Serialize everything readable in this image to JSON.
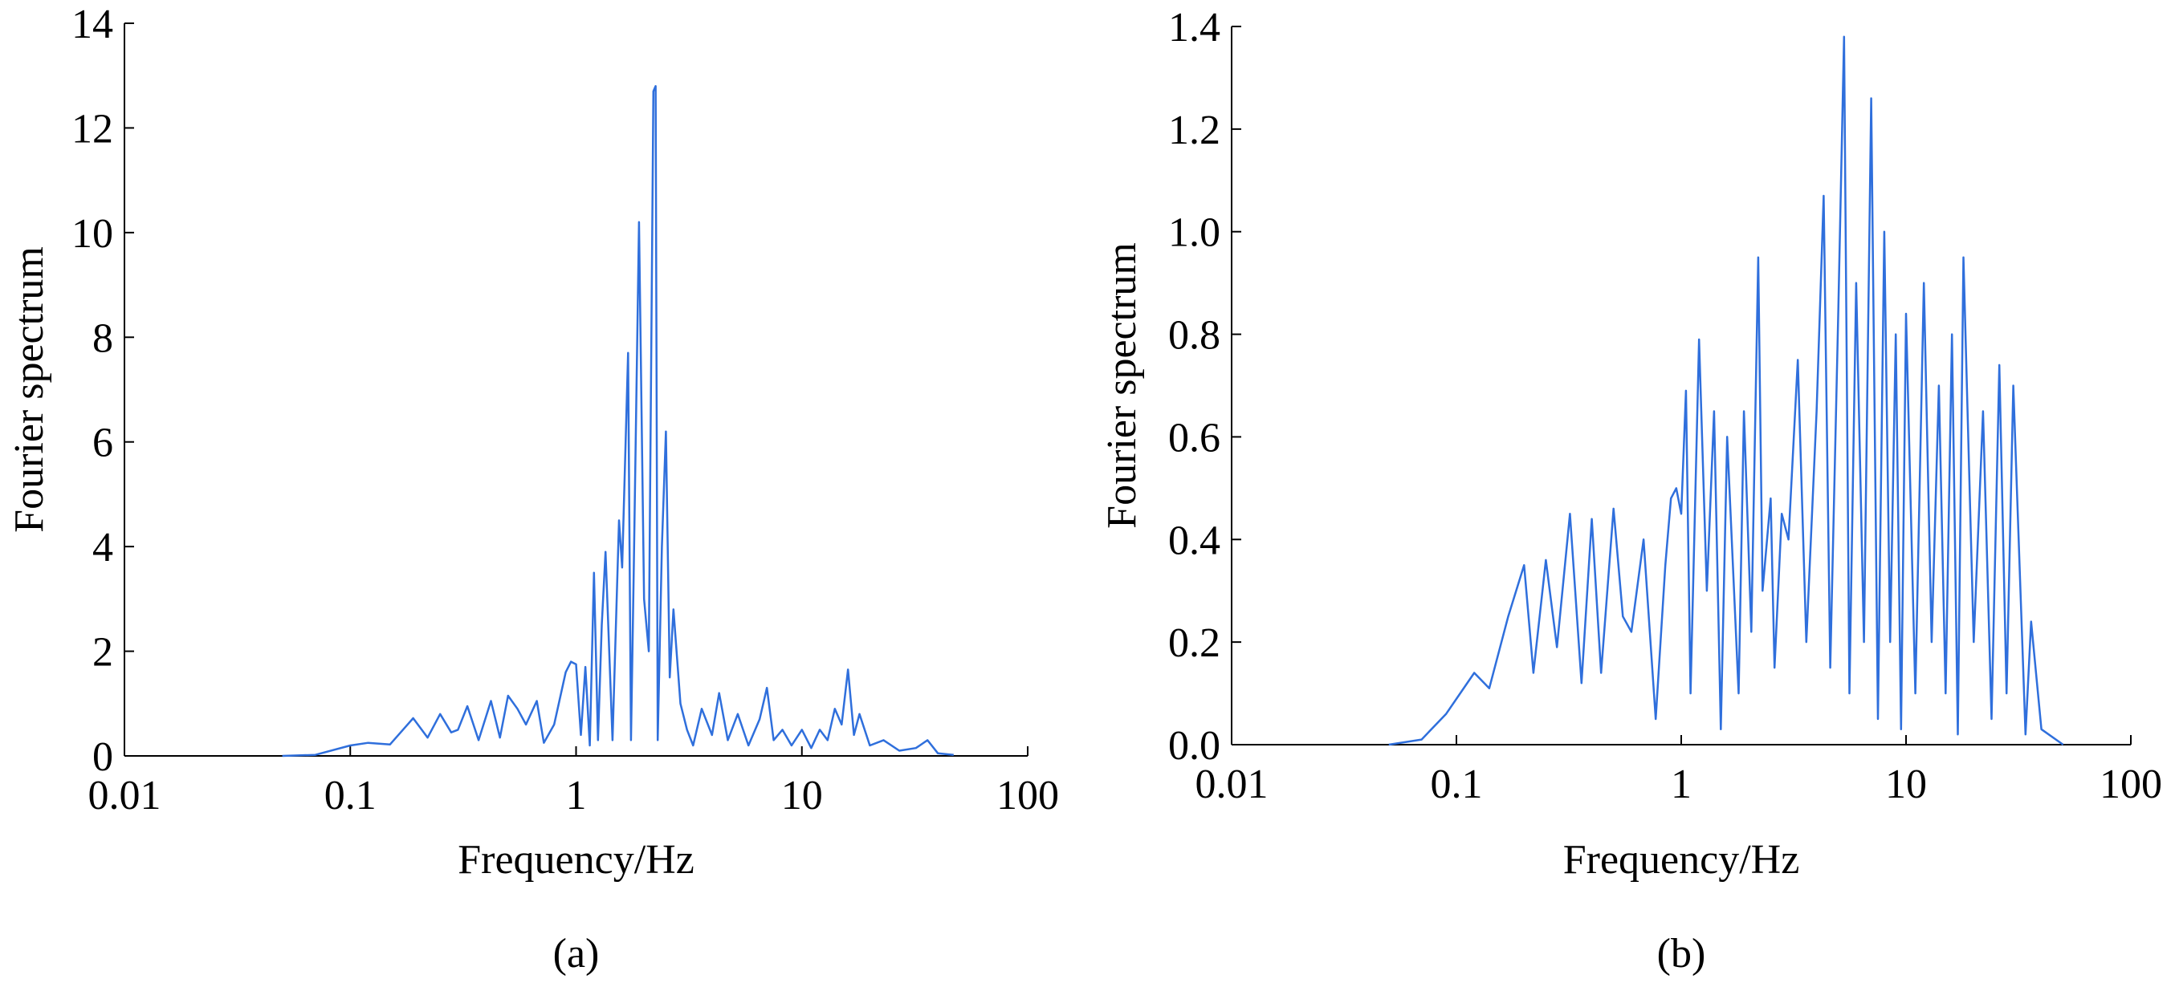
{
  "chart_data": [
    {
      "type": "line",
      "caption": "(a)",
      "xlabel": "Frequency/Hz",
      "ylabel": "Fourier spectrum",
      "xscale": "log",
      "xlim": [
        0.01,
        100
      ],
      "xticks": [
        0.01,
        0.1,
        1,
        10,
        100
      ],
      "ylim": [
        0,
        14
      ],
      "yticks": [
        0,
        2,
        4,
        6,
        8,
        10,
        12,
        14
      ],
      "x": [
        0.05,
        0.07,
        0.1,
        0.12,
        0.15,
        0.19,
        0.22,
        0.25,
        0.28,
        0.3,
        0.33,
        0.37,
        0.42,
        0.46,
        0.5,
        0.55,
        0.6,
        0.67,
        0.72,
        0.8,
        0.9,
        0.95,
        1.0,
        1.05,
        1.1,
        1.15,
        1.2,
        1.25,
        1.3,
        1.35,
        1.45,
        1.55,
        1.6,
        1.7,
        1.75,
        1.8,
        1.9,
        2.0,
        2.1,
        2.2,
        2.25,
        2.3,
        2.4,
        2.5,
        2.6,
        2.7,
        2.9,
        3.1,
        3.3,
        3.6,
        4.0,
        4.3,
        4.7,
        5.2,
        5.8,
        6.5,
        7.0,
        7.5,
        8.2,
        9,
        10,
        11,
        12,
        13,
        14,
        15,
        16,
        17,
        18,
        20,
        23,
        27,
        32,
        36,
        40,
        47
      ],
      "series": [
        {
          "color": "#2f6fdc",
          "values": [
            0,
            0.02,
            0.2,
            0.25,
            0.22,
            0.72,
            0.35,
            0.8,
            0.45,
            0.5,
            0.95,
            0.3,
            1.05,
            0.35,
            1.15,
            0.9,
            0.6,
            1.05,
            0.25,
            0.6,
            1.6,
            1.8,
            1.75,
            0.4,
            1.7,
            0.2,
            3.5,
            0.3,
            2.5,
            3.9,
            0.3,
            4.5,
            3.6,
            7.7,
            0.3,
            3.5,
            10.2,
            3.0,
            2.0,
            12.7,
            12.8,
            0.3,
            4.0,
            6.2,
            1.5,
            2.8,
            1.0,
            0.5,
            0.2,
            0.9,
            0.4,
            1.2,
            0.3,
            0.8,
            0.2,
            0.7,
            1.3,
            0.3,
            0.5,
            0.2,
            0.5,
            0.15,
            0.5,
            0.3,
            0.9,
            0.6,
            1.65,
            0.4,
            0.8,
            0.2,
            0.3,
            0.1,
            0.15,
            0.3,
            0.05,
            0.02
          ]
        }
      ]
    },
    {
      "type": "line",
      "caption": "(b)",
      "xlabel": "Frequency/Hz",
      "ylabel": "Fourier spectrum",
      "xscale": "log",
      "xlim": [
        0.01,
        100
      ],
      "xticks": [
        0.01,
        0.1,
        1,
        10,
        100
      ],
      "ylim": [
        0,
        1.4
      ],
      "yticks": [
        {
          "value": 0,
          "label": "0.0"
        },
        0.2,
        0.4,
        0.6,
        0.8,
        {
          "value": 1,
          "label": "1.0"
        },
        1.2,
        1.4
      ],
      "x": [
        0.05,
        0.07,
        0.09,
        0.12,
        0.14,
        0.17,
        0.2,
        0.22,
        0.25,
        0.28,
        0.32,
        0.36,
        0.4,
        0.44,
        0.5,
        0.55,
        0.6,
        0.68,
        0.77,
        0.85,
        0.9,
        0.95,
        1.0,
        1.05,
        1.1,
        1.2,
        1.3,
        1.4,
        1.5,
        1.6,
        1.8,
        1.9,
        2.05,
        2.2,
        2.3,
        2.5,
        2.6,
        2.8,
        3.0,
        3.3,
        3.6,
        4.0,
        4.3,
        4.6,
        5.0,
        5.3,
        5.6,
        6.0,
        6.5,
        7.0,
        7.5,
        8.0,
        8.5,
        9.0,
        9.5,
        10,
        11,
        12,
        13,
        14,
        15,
        16,
        17,
        18,
        20,
        22,
        24,
        26,
        28,
        30,
        32,
        34,
        36,
        40,
        50
      ],
      "series": [
        {
          "color": "#2f6fdc",
          "values": [
            0,
            0.01,
            0.06,
            0.14,
            0.11,
            0.25,
            0.35,
            0.14,
            0.36,
            0.19,
            0.45,
            0.12,
            0.44,
            0.14,
            0.46,
            0.25,
            0.22,
            0.4,
            0.05,
            0.35,
            0.48,
            0.5,
            0.45,
            0.69,
            0.1,
            0.79,
            0.3,
            0.65,
            0.03,
            0.6,
            0.1,
            0.65,
            0.22,
            0.95,
            0.3,
            0.48,
            0.15,
            0.45,
            0.4,
            0.75,
            0.2,
            0.65,
            1.07,
            0.15,
            0.85,
            1.38,
            0.1,
            0.9,
            0.2,
            1.26,
            0.05,
            1.0,
            0.2,
            0.8,
            0.03,
            0.84,
            0.1,
            0.9,
            0.2,
            0.7,
            0.1,
            0.8,
            0.02,
            0.95,
            0.2,
            0.65,
            0.05,
            0.74,
            0.1,
            0.7,
            0.35,
            0.02,
            0.24,
            0.03,
            0
          ]
        }
      ]
    }
  ]
}
